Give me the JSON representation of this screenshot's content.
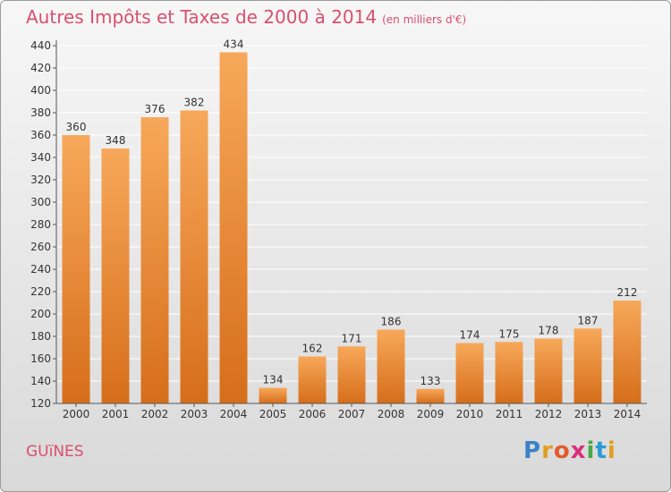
{
  "title": {
    "main": "Autres Impôts et Taxes de 2000 à 2014",
    "unit": "(en milliers d'€)"
  },
  "town": "GUïNES",
  "logo": {
    "letters": [
      "P",
      "r",
      "o",
      "x",
      "i",
      "t",
      "i"
    ],
    "colors": [
      "#3a83c9",
      "#e0a020",
      "#e25a2e",
      "#d92e7a",
      "#49a849",
      "#2a9ad6",
      "#e0a020"
    ]
  },
  "colors": {
    "accent": "#d94f6e",
    "bar_top": "#f7a85a",
    "bar_bottom": "#d66e1a",
    "grid": "#ffffff"
  },
  "chart_data": {
    "type": "bar",
    "title": "Autres Impôts et Taxes de 2000 à 2014",
    "subtitle": "(en milliers d'€)",
    "xlabel": "",
    "ylabel": "",
    "ylim": [
      120,
      440
    ],
    "y_ticks": [
      120,
      140,
      160,
      180,
      200,
      220,
      240,
      260,
      280,
      300,
      320,
      340,
      360,
      380,
      400,
      420,
      440
    ],
    "grid": true,
    "categories": [
      "2000",
      "2001",
      "2002",
      "2003",
      "2004",
      "2005",
      "2006",
      "2007",
      "2008",
      "2009",
      "2010",
      "2011",
      "2012",
      "2013",
      "2014"
    ],
    "values": [
      360,
      348,
      376,
      382,
      434,
      134,
      162,
      171,
      186,
      133,
      174,
      175,
      178,
      187,
      212
    ]
  }
}
